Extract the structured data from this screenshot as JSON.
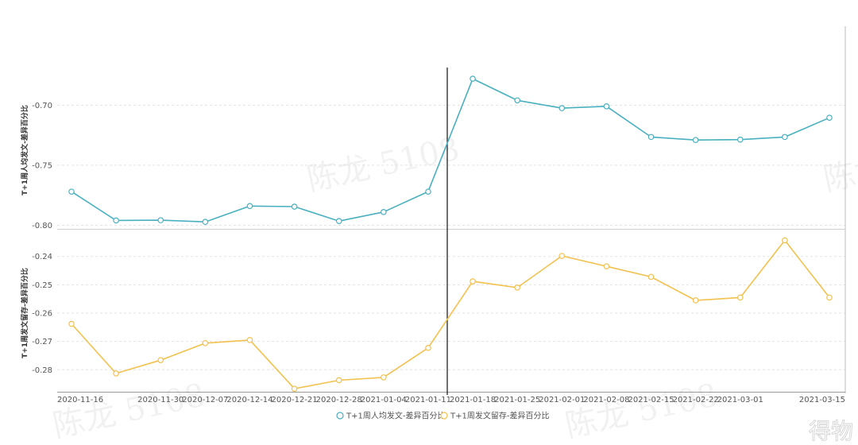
{
  "chart_data": {
    "type": "line",
    "x": [
      "2020-11-16",
      "2020-11-23",
      "2020-11-30",
      "2020-12-07",
      "2020-12-14",
      "2020-12-21",
      "2020-12-28",
      "2021-01-04",
      "2021-01-11",
      "2021-01-18",
      "2021-01-25",
      "2021-02-01",
      "2021-02-08",
      "2021-02-15",
      "2021-02-22",
      "2021-03-01",
      "2021-03-08",
      "2021-03-15"
    ],
    "x_tick_labels": [
      "2020-11-16",
      "",
      "2020-11-30",
      "2020-12-07",
      "2020-12-14",
      "2020-12-21",
      "2020-12-28",
      "2021-01-04",
      "2021-01-11",
      "2021-01-18",
      "2021-01-25",
      "2021-02-01",
      "2021-02-08",
      "2021-02-15",
      "2021-02-22",
      "2021-03-01",
      "",
      "2021-03-15"
    ],
    "marker_x": "2021-01-14",
    "panels": [
      {
        "ylabel": "T+1周人均发文-差异百分比",
        "ylim": [
          -0.803,
          -0.672
        ],
        "yticks": [
          -0.7,
          -0.75,
          -0.8
        ],
        "ytick_labels": [
          "-0.70",
          "-0.75",
          "-0.80"
        ],
        "series": {
          "name": "T+1周人均发文-差异百分比",
          "color": "#4ab0c0",
          "values": [
            -0.772,
            -0.796,
            -0.7958,
            -0.7972,
            -0.784,
            -0.7845,
            -0.7965,
            -0.789,
            -0.772,
            -0.678,
            -0.696,
            -0.7025,
            -0.701,
            -0.7265,
            -0.729,
            -0.7287,
            -0.7265,
            -0.7105
          ]
        }
      },
      {
        "ylabel": "T+1周发文留存-差异百分比",
        "ylim": [
          -0.2875,
          -0.2325
        ],
        "yticks": [
          -0.24,
          -0.25,
          -0.26,
          -0.27,
          -0.28
        ],
        "ytick_labels": [
          "-0.24",
          "-0.25",
          "-0.26",
          "-0.27",
          "-0.28"
        ],
        "series": {
          "name": "T+1周发文留存-差异百分比",
          "color": "#f2c14e",
          "values": [
            -0.2638,
            -0.2813,
            -0.2766,
            -0.2706,
            -0.2695,
            -0.2867,
            -0.2837,
            -0.2827,
            -0.2723,
            -0.2488,
            -0.251,
            -0.2398,
            -0.2435,
            -0.2472,
            -0.2555,
            -0.2545,
            -0.2343,
            -0.2545
          ]
        }
      }
    ],
    "legend": [
      "T+1周人均发文-差异百分比",
      "T+1周发文留存-差异百分比"
    ],
    "legend_position": "bottom-center",
    "grid": true
  },
  "watermarks": [
    "陈龙 5108",
    "陈龙 5108",
    "陈龙 5108",
    "陈龙 5108"
  ],
  "corner_mark": "得物"
}
